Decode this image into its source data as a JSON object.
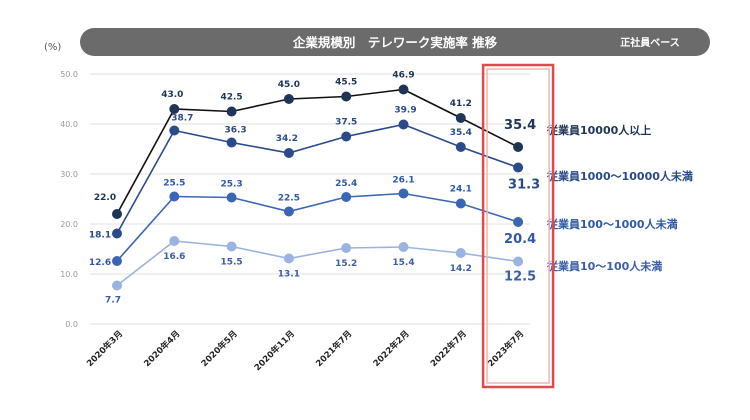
{
  "header": {
    "unit": "(%)",
    "title": "企業規模別　テレワーク実施率 推移",
    "basis": "正社員ベース"
  },
  "chart_data": {
    "type": "line",
    "title": "企業規模別　テレワーク実施率 推移",
    "ylabel": "(%)",
    "ylim": [
      0,
      50
    ],
    "yticks": [
      "0.0",
      "10.0",
      "20.0",
      "30.0",
      "40.0",
      "50.0"
    ],
    "grid": true,
    "legend_placement": "right",
    "categories": [
      "2020年3月",
      "2020年4月",
      "2020年5月",
      "2020年11月",
      "2021年7月",
      "2022年2月",
      "2022年7月",
      "2023年7月"
    ],
    "highlighted_category": "2023年7月",
    "series": [
      {
        "name": "従業員10000人以上",
        "values": [
          22.0,
          43.0,
          42.5,
          45.0,
          45.5,
          46.9,
          41.2,
          35.4
        ],
        "labels": [
          "22.0",
          "43.0",
          "42.5",
          "45.0",
          "45.5",
          "46.9",
          "41.2",
          "35.4"
        ],
        "color": "#1d3557",
        "line_color": "#111111",
        "label_color": "#1d3557"
      },
      {
        "name": "従業員1000～10000人未満",
        "values": [
          18.1,
          38.7,
          36.3,
          34.2,
          37.5,
          39.9,
          35.4,
          31.3
        ],
        "labels": [
          "18.1",
          "38.7",
          "36.3",
          "34.2",
          "37.5",
          "39.9",
          "35.4",
          "31.3"
        ],
        "color": "#2a4a8a",
        "line_color": "#2a4a8a",
        "label_color": "#2a4a8a"
      },
      {
        "name": "従業員100～1000人未満",
        "values": [
          12.6,
          25.5,
          25.3,
          22.5,
          25.4,
          26.1,
          24.1,
          20.4
        ],
        "labels": [
          "12.6",
          "25.5",
          "25.3",
          "22.5",
          "25.4",
          "26.1",
          "24.1",
          "20.4"
        ],
        "color": "#3a66b5",
        "line_color": "#3a66b5",
        "label_color": "#2f5aa8"
      },
      {
        "name": "従業員10～100人未満",
        "values": [
          7.7,
          16.6,
          15.5,
          13.1,
          15.2,
          15.4,
          14.2,
          12.5
        ],
        "labels": [
          "7.7",
          "16.6",
          "15.5",
          "13.1",
          "15.2",
          "15.4",
          "14.2",
          "12.5"
        ],
        "color": "#9ab3e0",
        "line_color": "#9ab3e0",
        "label_color": "#3b5ea8"
      }
    ]
  }
}
